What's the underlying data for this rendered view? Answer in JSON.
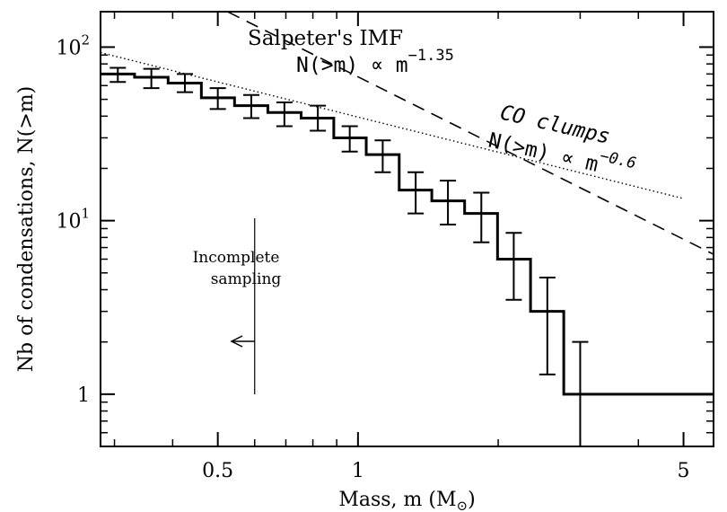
{
  "chart_data": {
    "type": "line",
    "xscale": "log",
    "yscale": "log",
    "xlim": [
      0.28,
      5.8
    ],
    "ylim": [
      0.5,
      160
    ],
    "xlabel": "Mass, m (M",
    "xlabel_sub": "⊙",
    "xlabel_tail": ")",
    "ylabel": "Nb of condensations, N(>m)",
    "x_ticks": [
      {
        "value": 0.5,
        "label": "0.5"
      },
      {
        "value": 1,
        "label": "1"
      },
      {
        "value": 5,
        "label": "5"
      }
    ],
    "y_ticks": [
      {
        "value": 1,
        "label": "1",
        "base": "1",
        "exp": ""
      },
      {
        "value": 10,
        "label": "10^1",
        "base": "10",
        "exp": "1"
      },
      {
        "value": 100,
        "label": "10^2",
        "base": "10",
        "exp": "2"
      }
    ],
    "minor_x_ticks": [
      0.3,
      0.4,
      0.6,
      0.7,
      0.8,
      0.9,
      2,
      3,
      4
    ],
    "minor_y_ticks": [
      0.6,
      0.7,
      0.8,
      0.9,
      2,
      3,
      4,
      5,
      6,
      7,
      8,
      9,
      20,
      30,
      40,
      50,
      60,
      70,
      80,
      90
    ],
    "series": [
      {
        "style": "step-with-errorbars",
        "bin_edges": [
          0.28,
          0.335,
          0.395,
          0.465,
          0.545,
          0.64,
          0.755,
          0.885,
          1.04,
          1.225,
          1.44,
          1.695,
          1.995,
          2.35,
          2.765,
          3.25,
          3.825,
          4.5,
          5.8
        ],
        "points": [
          {
            "x": 0.305,
            "y": 70,
            "ylo": 63,
            "yhi": 76
          },
          {
            "x": 0.36,
            "y": 67,
            "ylo": 58,
            "yhi": 75
          },
          {
            "x": 0.425,
            "y": 62,
            "ylo": 55,
            "yhi": 70
          },
          {
            "x": 0.5,
            "y": 51,
            "ylo": 44,
            "yhi": 58
          },
          {
            "x": 0.59,
            "y": 46,
            "ylo": 39,
            "yhi": 53
          },
          {
            "x": 0.695,
            "y": 42,
            "ylo": 35,
            "yhi": 48
          },
          {
            "x": 0.82,
            "y": 39,
            "ylo": 33,
            "yhi": 46
          },
          {
            "x": 0.96,
            "y": 30,
            "ylo": 25,
            "yhi": 35
          },
          {
            "x": 1.13,
            "y": 24,
            "ylo": 19,
            "yhi": 29
          },
          {
            "x": 1.33,
            "y": 15,
            "ylo": 11,
            "yhi": 19
          },
          {
            "x": 1.56,
            "y": 13,
            "ylo": 9.5,
            "yhi": 17
          },
          {
            "x": 1.84,
            "y": 11,
            "ylo": 7.5,
            "yhi": 14.5
          },
          {
            "x": 2.16,
            "y": 6,
            "ylo": 3.5,
            "yhi": 8.5
          },
          {
            "x": 2.55,
            "y": 3,
            "ylo": 1.3,
            "yhi": 4.7
          },
          {
            "x": 3.0,
            "y": 1,
            "ylo": 0.5,
            "yhi": 2
          }
        ]
      },
      {
        "name": "Salpeter's IMF",
        "style": "dashed",
        "x": [
          0.4,
          5.8
        ],
        "y": [
          230,
          6.4
        ]
      },
      {
        "name": "CO clumps",
        "style": "dotted",
        "x": [
          0.28,
          5.0
        ],
        "y": [
          93,
          13.4
        ]
      }
    ],
    "annotations": {
      "salpeter_title": "Salpeter's IMF",
      "salpeter_base": "N(>m) ∝ m",
      "salpeter_exp": "−1.35",
      "co_title": "CO clumps",
      "co_base": "N(>m) ∝ m",
      "co_exp": "−0.6",
      "incomplete_line1": "Incomplete",
      "incomplete_line2": "sampling"
    },
    "incomplete_limit_x": 0.6,
    "legend": "none",
    "grid": false
  }
}
